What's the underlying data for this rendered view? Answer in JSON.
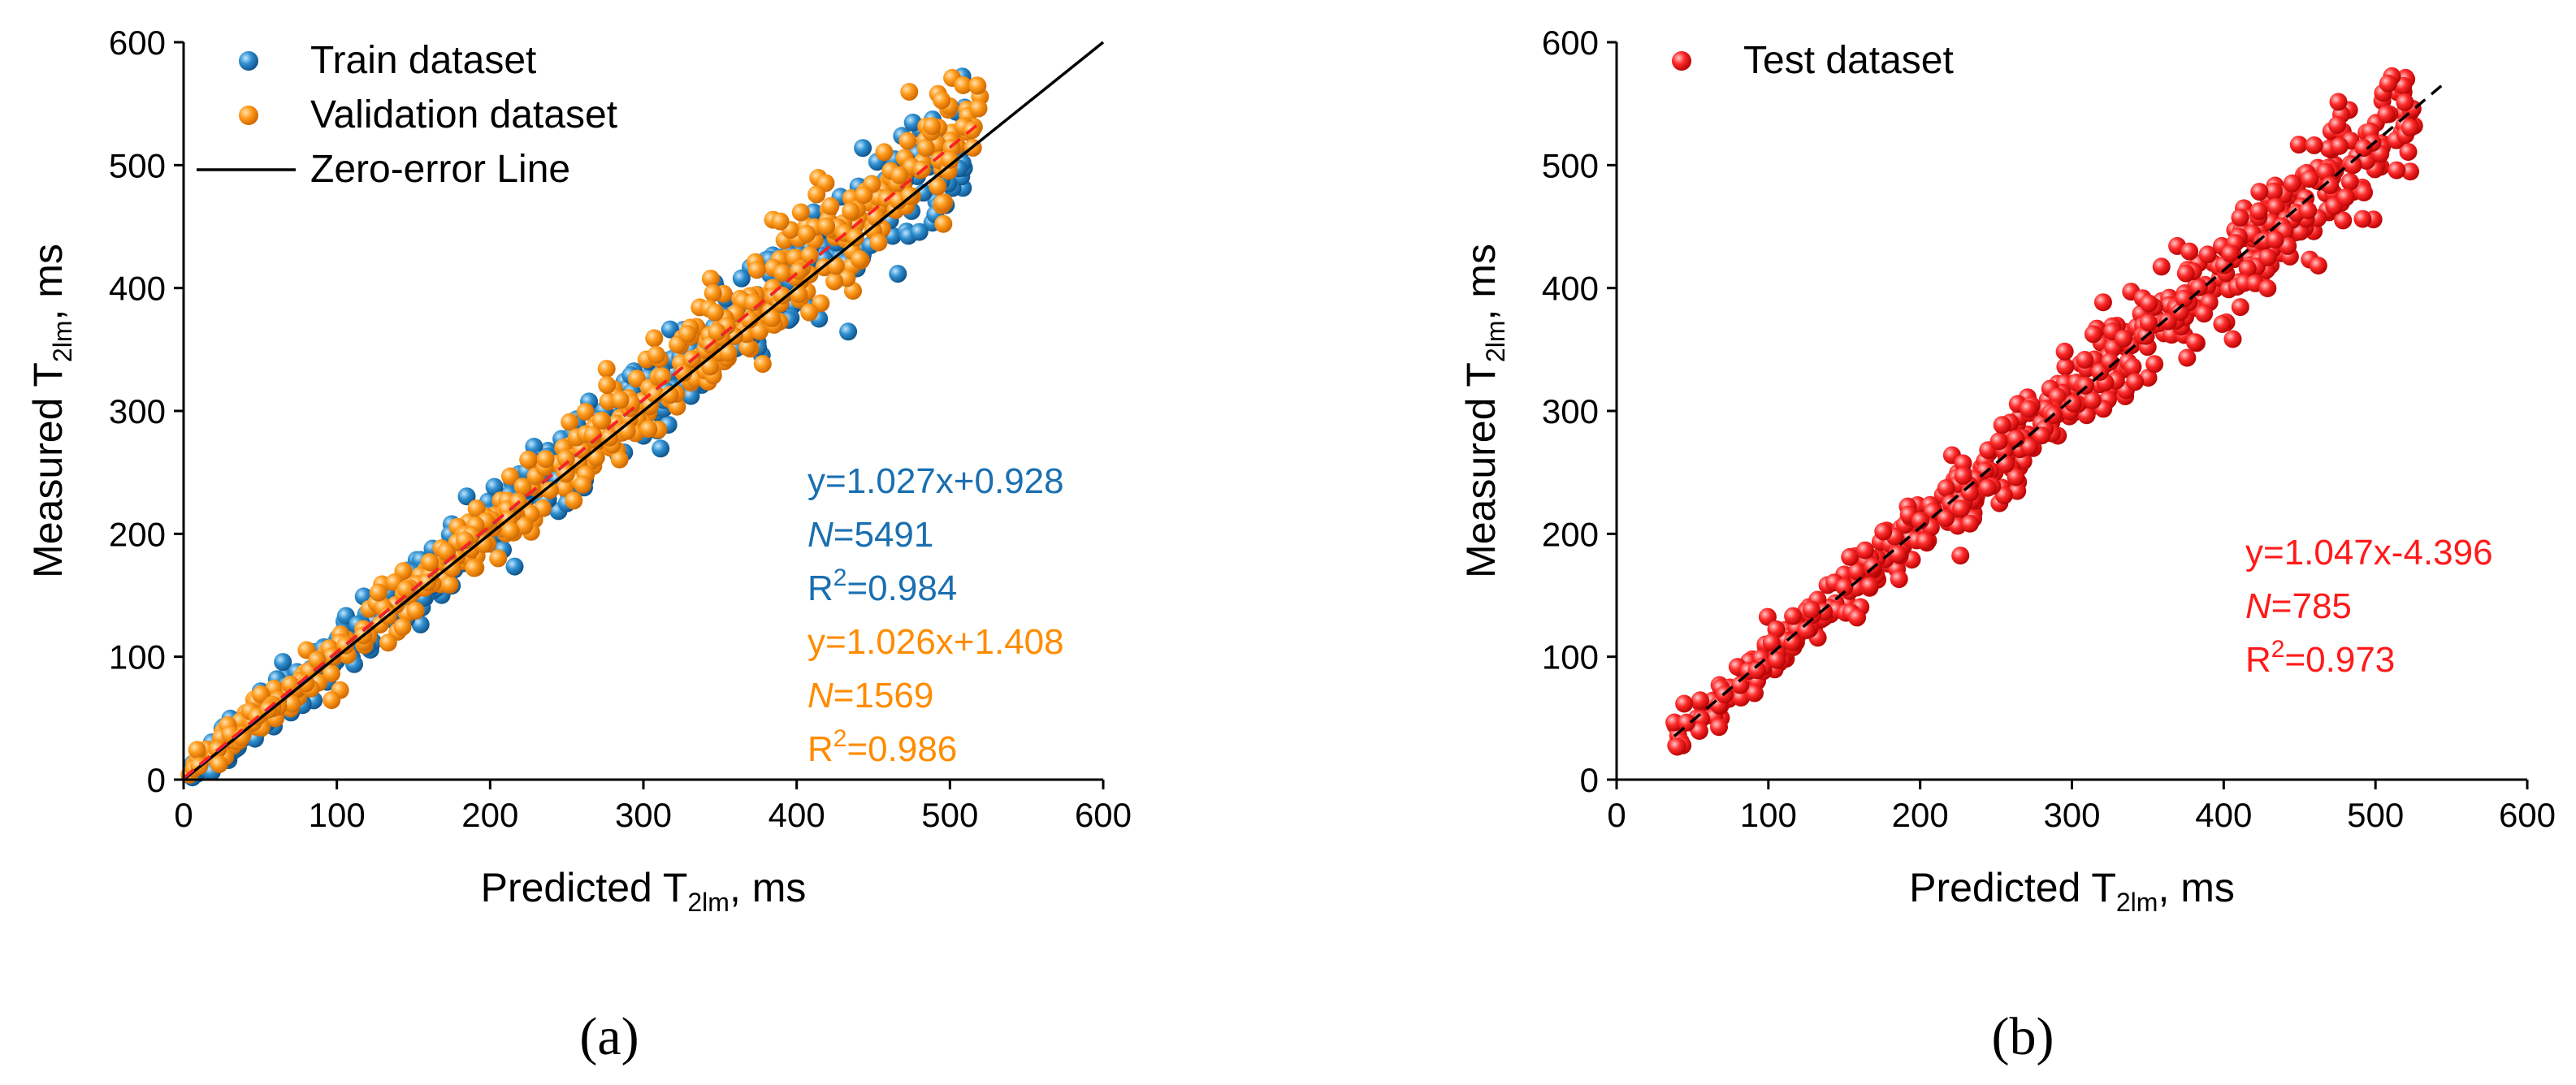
{
  "chart_data": [
    {
      "panel": "(a)",
      "type": "scatter",
      "xlabel": "Predicted T",
      "xlabel_sub": "2lm",
      "xlabel_unit": ", ms",
      "ylabel": "Measured T",
      "ylabel_sub": "2lm",
      "ylabel_unit": ", ms",
      "xlim": [
        0,
        600
      ],
      "ylim": [
        0,
        600
      ],
      "xticks": [
        0,
        100,
        200,
        300,
        400,
        500,
        600
      ],
      "yticks": [
        0,
        100,
        200,
        300,
        400,
        500,
        600
      ],
      "legend_position": "top-left",
      "legend": [
        {
          "label": "Train dataset",
          "marker": "circle",
          "color": "#1f77b4"
        },
        {
          "label": "Validation dataset",
          "marker": "circle",
          "color": "#ff8c00"
        },
        {
          "label": "Zero-error Line",
          "marker": "line",
          "color": "#000000"
        }
      ],
      "series": [
        {
          "name": "Train dataset",
          "color": "#1f77b4",
          "n": 5491,
          "fit_slope": 1.027,
          "fit_intercept": 0.928,
          "x_range": [
            3,
            510
          ]
        },
        {
          "name": "Validation dataset",
          "color": "#ff8c00",
          "n": 1569,
          "fit_slope": 1.026,
          "fit_intercept": 1.408,
          "x_range": [
            3,
            520
          ]
        }
      ],
      "fit_lines": [
        {
          "slope": 1.027,
          "intercept": 0.928,
          "x_range": [
            0,
            510
          ],
          "color": "#2233cc",
          "style": "dashed"
        },
        {
          "slope": 1.026,
          "intercept": 1.408,
          "x_range": [
            0,
            520
          ],
          "color": "#ff2020",
          "style": "dashed"
        }
      ],
      "zero_error_line": {
        "x_range": [
          0,
          600
        ]
      },
      "annotations": [
        {
          "text": "y=1.027x+0.928",
          "color": "#1a6fb0"
        },
        {
          "italic": "N",
          "text": "=5491",
          "color": "#1a6fb0"
        },
        {
          "text": "R",
          "sup": "2",
          "tail": "=0.984",
          "color": "#1a6fb0"
        },
        {
          "text": "y=1.026x+1.408",
          "color": "#ff8c00"
        },
        {
          "italic": "N",
          "text": "=1569",
          "color": "#ff8c00"
        },
        {
          "text": "R",
          "sup": "2",
          "tail": "=0.986",
          "color": "#ff8c00"
        }
      ]
    },
    {
      "panel": "(b)",
      "type": "scatter",
      "xlabel": "Predicted T",
      "xlabel_sub": "2lm",
      "xlabel_unit": ", ms",
      "ylabel": "Measured T",
      "ylabel_sub": "2lm",
      "ylabel_unit": ", ms",
      "xlim": [
        0,
        600
      ],
      "ylim": [
        0,
        600
      ],
      "xticks": [
        0,
        100,
        200,
        300,
        400,
        500,
        600
      ],
      "yticks": [
        0,
        100,
        200,
        300,
        400,
        500,
        600
      ],
      "legend_position": "top-left",
      "legend": [
        {
          "label": "Test dataset",
          "marker": "circle",
          "color": "#ff1a1a"
        }
      ],
      "series": [
        {
          "name": "Test dataset",
          "color": "#ff1a1a",
          "n": 785,
          "fit_slope": 1.047,
          "fit_intercept": -4.396,
          "x_range": [
            38,
            530
          ]
        }
      ],
      "fit_lines": [
        {
          "slope": 1.047,
          "intercept": -4.396,
          "x_range": [
            38,
            545
          ],
          "color": "#000000",
          "style": "dashed"
        }
      ],
      "annotations": [
        {
          "text": "y=1.047x-4.396",
          "color": "#ff1a1a"
        },
        {
          "italic": "N",
          "text": "=785",
          "color": "#ff1a1a"
        },
        {
          "text": "R",
          "sup": "2",
          "tail": "=0.973",
          "color": "#ff1a1a"
        }
      ]
    }
  ]
}
